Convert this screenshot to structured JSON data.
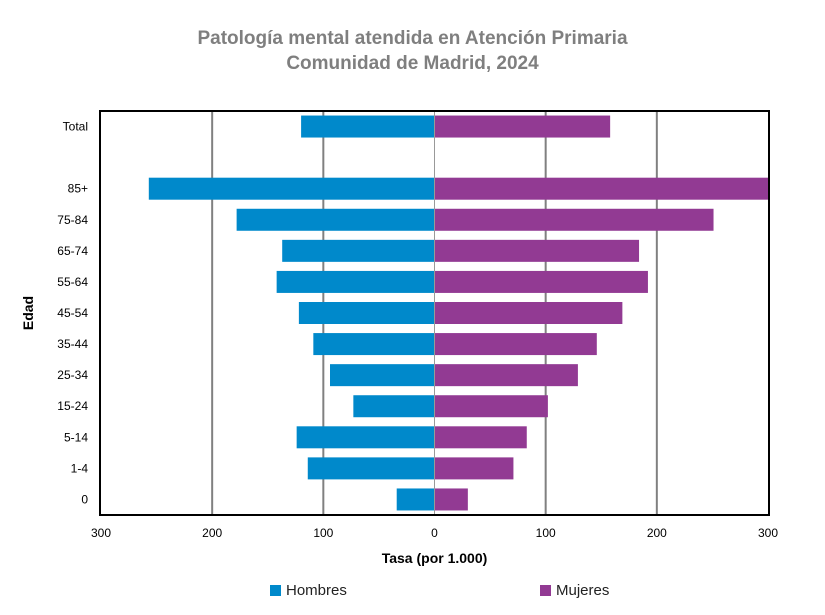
{
  "chart_data": {
    "type": "bar",
    "orientation": "horizontal",
    "layout": "population-pyramid",
    "title": "Patología mental atendida en Atención Primaria",
    "subtitle": "Comunidad de Madrid, 2024",
    "xlabel": "Tasa (por 1.000)",
    "ylabel": "Edad",
    "categories": [
      "Total",
      "",
      "85+",
      "75-84",
      "65-74",
      "55-64",
      "45-54",
      "35-44",
      "25-34",
      "15-24",
      "5-14",
      "1-4",
      "0"
    ],
    "series": [
      {
        "name": "Hombres",
        "color": "#0089CB",
        "side": "left",
        "values": [
          120,
          null,
          257,
          178,
          137,
          142,
          122,
          109,
          94,
          73,
          124,
          114,
          34
        ]
      },
      {
        "name": "Mujeres",
        "color": "#923A93",
        "side": "right",
        "values": [
          158,
          null,
          300,
          251,
          184,
          192,
          169,
          146,
          129,
          102,
          83,
          71,
          30
        ]
      }
    ],
    "xlim": [
      -300,
      300
    ],
    "xticks": [
      -300,
      -200,
      -100,
      0,
      100,
      200,
      300
    ],
    "xtick_labels": [
      "300",
      "200",
      "100",
      "0",
      "100",
      "200",
      "300"
    ],
    "grid": "vertical",
    "legend": "bottom"
  }
}
